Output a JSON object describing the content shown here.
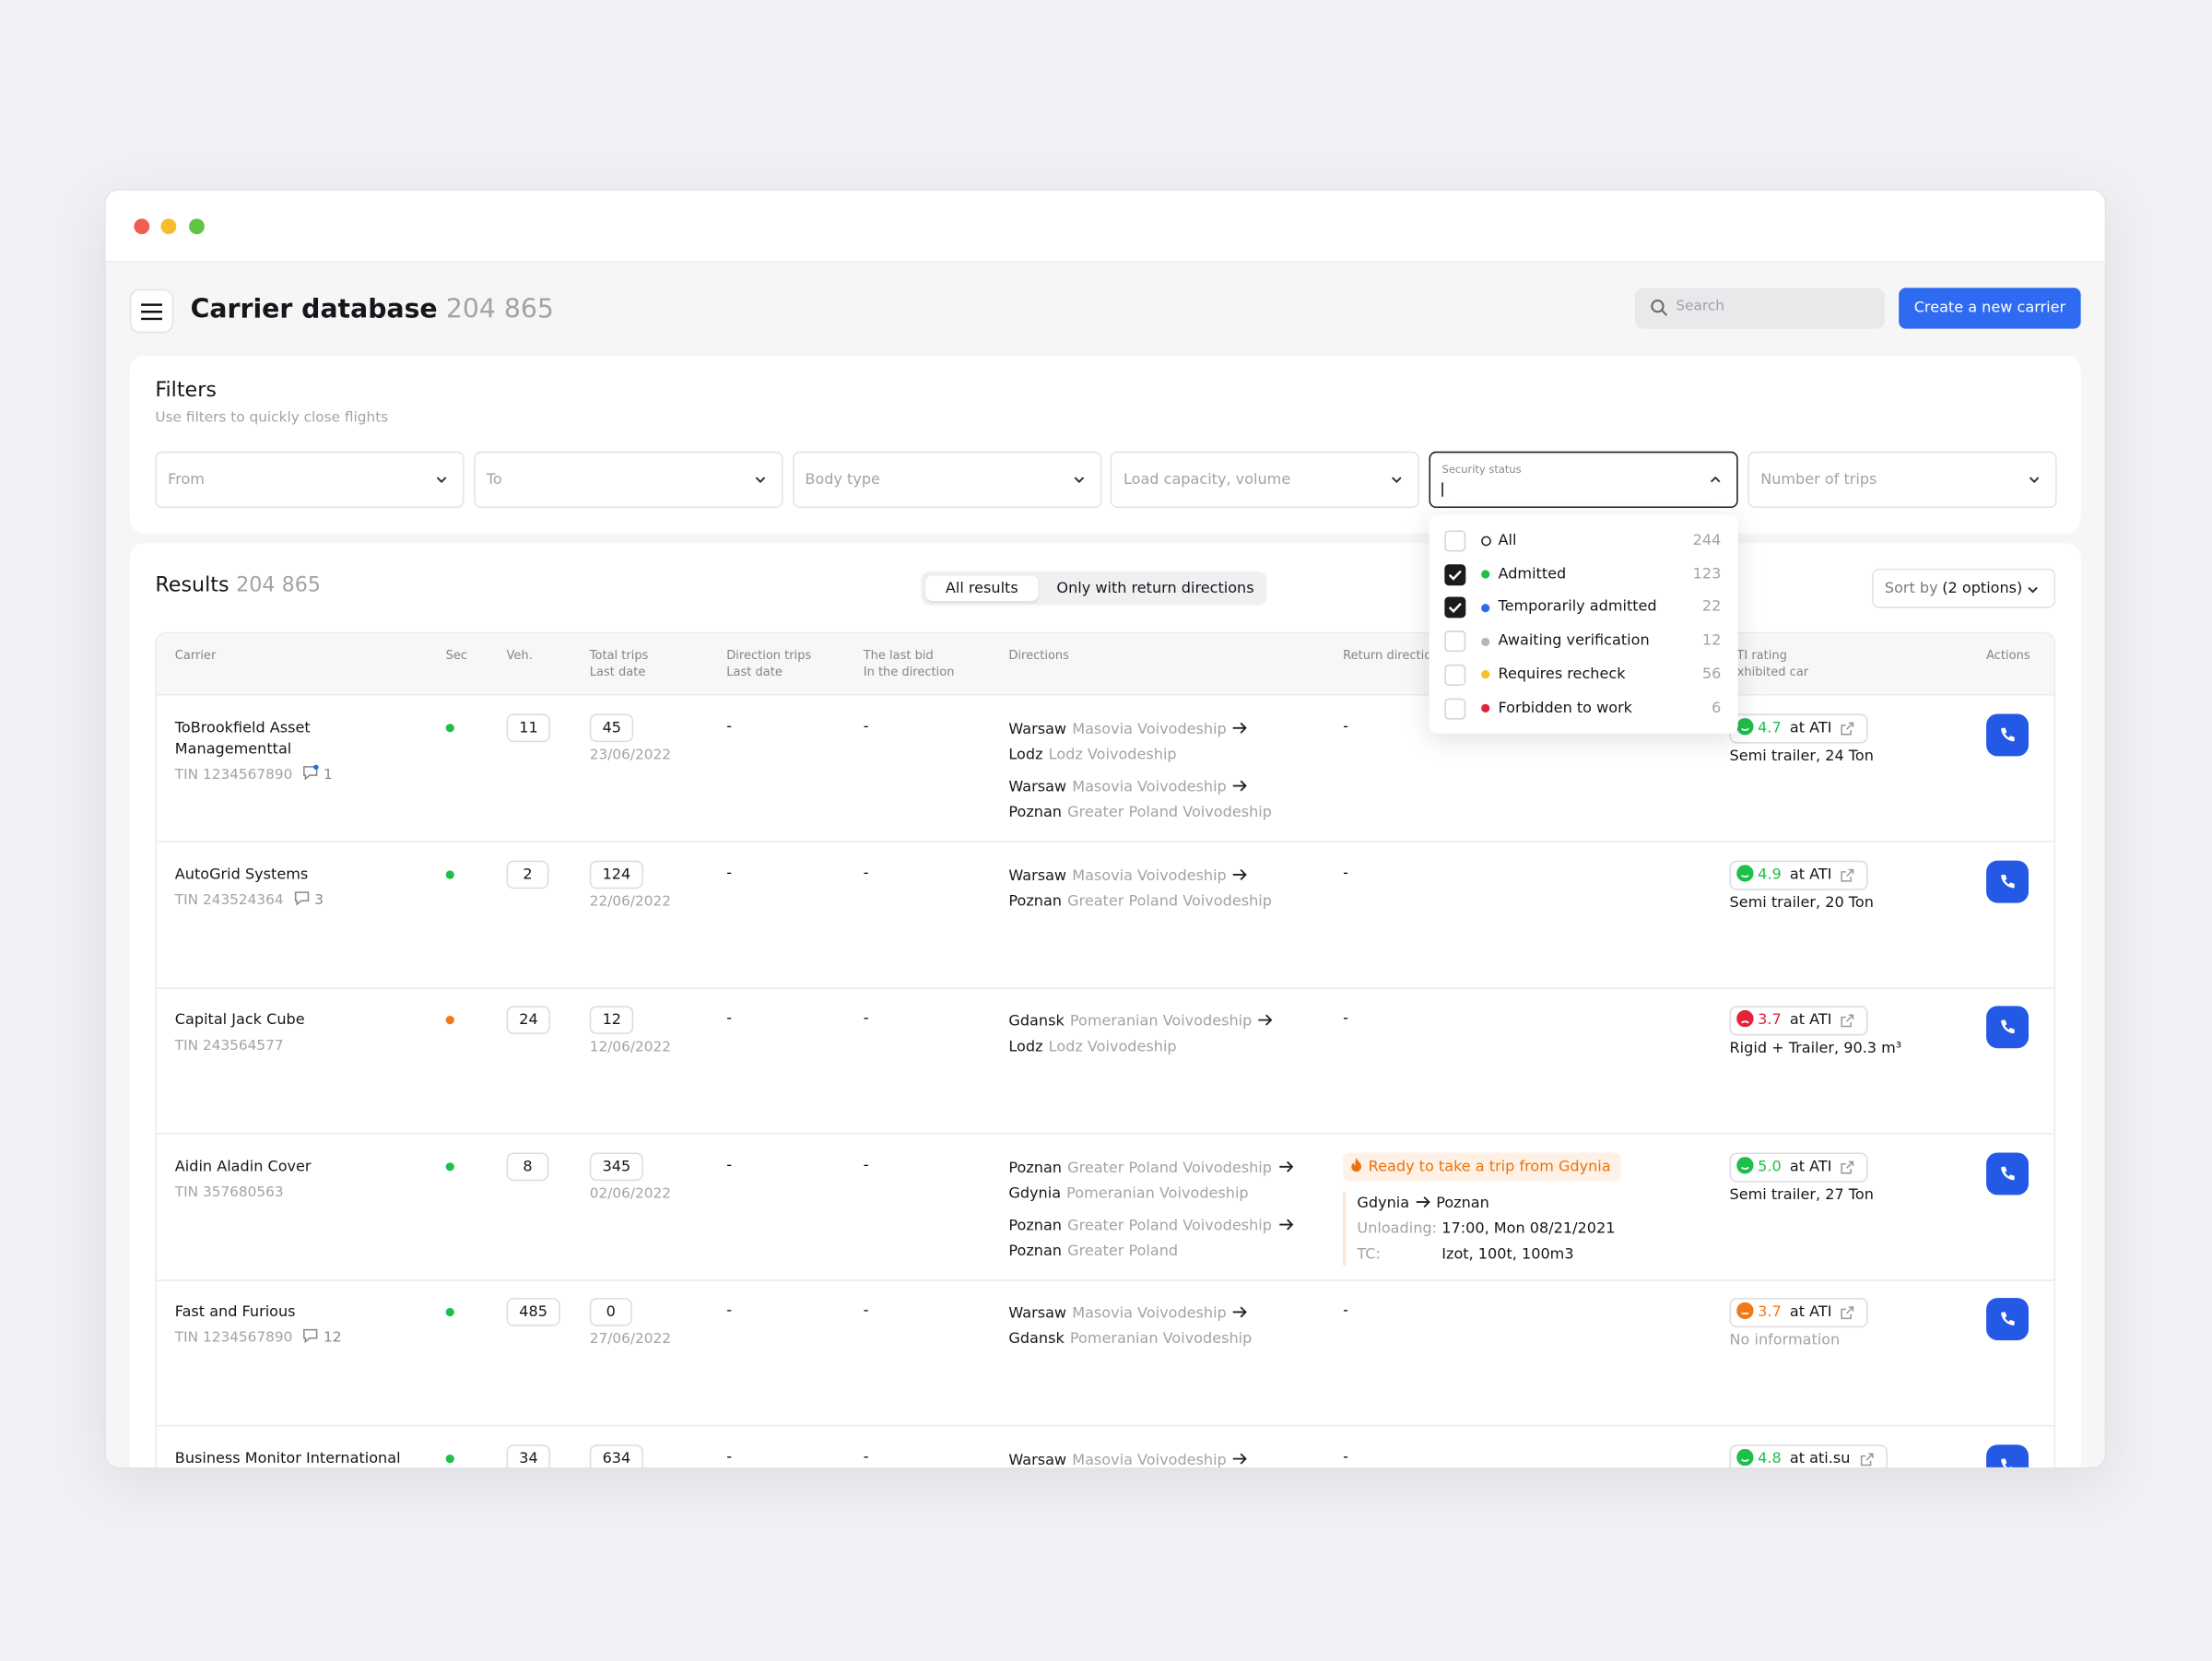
{
  "header": {
    "title": "Carrier database",
    "count": "204 865",
    "search_placeholder": "Search",
    "create_button": "Create a new carrier"
  },
  "filters": {
    "title": "Filters",
    "subtitle": "Use filters to quickly close flights",
    "fields": [
      {
        "label": "From"
      },
      {
        "label": "To"
      },
      {
        "label": "Body type"
      },
      {
        "label": "Load capacity, volume"
      },
      {
        "label": "Security status",
        "open": true
      },
      {
        "label": "Number of trips"
      }
    ],
    "security_options": [
      {
        "label": "All",
        "count": 244,
        "checked": false,
        "color": "hollow"
      },
      {
        "label": "Admitted",
        "count": 123,
        "checked": true,
        "color": "#1fbf4c"
      },
      {
        "label": "Temporarily admitted",
        "count": 22,
        "checked": true,
        "color": "#2f6bf0"
      },
      {
        "label": "Awaiting verification",
        "count": 12,
        "checked": false,
        "color": "#b5b5ba"
      },
      {
        "label": "Requires recheck",
        "count": 56,
        "checked": false,
        "color": "#f2c12e"
      },
      {
        "label": "Forbidden to work",
        "count": 6,
        "checked": false,
        "color": "#e0243a"
      }
    ]
  },
  "results": {
    "title": "Results",
    "count": "204 865",
    "tabs": [
      "All results",
      "Only with return directions"
    ],
    "sort_label": "Sort by",
    "sort_value": "(2 options)",
    "columns": [
      {
        "lines": [
          "Carrier"
        ]
      },
      {
        "lines": [
          "Sec"
        ]
      },
      {
        "lines": [
          "Veh."
        ]
      },
      {
        "lines": [
          "Total trips",
          "Last date"
        ]
      },
      {
        "lines": [
          "Direction trips",
          "Last date"
        ]
      },
      {
        "lines": [
          "The last bid",
          "In the direction"
        ]
      },
      {
        "lines": [
          "Directions"
        ]
      },
      {
        "lines": [
          "Return directions"
        ]
      },
      {
        "lines": [
          "ATI rating",
          "Exhibited car"
        ]
      },
      {
        "lines": [
          "Actions"
        ]
      }
    ],
    "rows": [
      {
        "name": "ToBrookfield Asset Managementtal",
        "tin": "TIN 1234567890",
        "comments": 1,
        "comment_unread": true,
        "sec_color": "#1fbf4c",
        "vehicles": 11,
        "total_trips": 45,
        "last_date": "23/06/2022",
        "direction_trips": "-",
        "last_bid": "-",
        "directions": [
          {
            "from": "Warsaw",
            "from_region": "Masovia Voivodeship",
            "to": "Lodz",
            "to_region": "Lodz Voivodeship"
          },
          {
            "from": "Warsaw",
            "from_region": "Masovia Voivodeship",
            "to": "Poznan",
            "to_region": "Greater Poland Voivodeship"
          }
        ],
        "return": "-",
        "rating": {
          "value": "4.7",
          "color": "#1fbf4c",
          "mood": "happy",
          "source": "at ATI"
        },
        "car": "Semi trailer, 24 Ton"
      },
      {
        "name": "AutoGrid Systems",
        "tin": "TIN 243524364",
        "comments": 3,
        "sec_color": "#1fbf4c",
        "vehicles": 2,
        "total_trips": 124,
        "last_date": "22/06/2022",
        "direction_trips": "-",
        "last_bid": "-",
        "directions": [
          {
            "from": "Warsaw",
            "from_region": "Masovia Voivodeship",
            "to": "Poznan",
            "to_region": "Greater Poland Voivodeship"
          }
        ],
        "return": "-",
        "rating": {
          "value": "4.9",
          "color": "#1fbf4c",
          "mood": "happy",
          "source": "at ATI"
        },
        "car": "Semi trailer, 20 Ton"
      },
      {
        "name": "Capital Jack Cube",
        "tin": "TIN 243564577",
        "sec_color": "#f07a1a",
        "vehicles": 24,
        "total_trips": 12,
        "last_date": "12/06/2022",
        "direction_trips": "-",
        "last_bid": "-",
        "directions": [
          {
            "from": "Gdansk",
            "from_region": "Pomeranian Voivodeship",
            "to": "Lodz",
            "to_region": "Lodz Voivodeship"
          }
        ],
        "return": "-",
        "rating": {
          "value": "3.7",
          "color": "#e0243a",
          "mood": "sad",
          "source": "at ATI"
        },
        "car": "Rigid + Trailer, 90.3 m³"
      },
      {
        "name": "Aidin Aladin Cover",
        "tin": "TIN 357680563",
        "sec_color": "#1fbf4c",
        "vehicles": 8,
        "total_trips": 345,
        "last_date": "02/06/2022",
        "direction_trips": "-",
        "last_bid": "-",
        "directions": [
          {
            "from": "Poznan",
            "from_region": "Greater Poland Voivodeship",
            "to": "Gdynia",
            "to_region": "Pomeranian Voivodeship"
          },
          {
            "from": "Poznan",
            "from_region": "Greater Poland Voivodeship",
            "to": "Poznan",
            "to_region": "Greater Poland"
          }
        ],
        "return": {
          "badge": "Ready to take a trip from Gdynia",
          "from": "Gdynia",
          "to": "Poznan",
          "unloading_label": "Unloading:",
          "unloading": "17:00, Mon 08/21/2021",
          "tc_label": "TC:",
          "tc": "Izot, 100t, 100m3"
        },
        "rating": {
          "value": "5.0",
          "color": "#1fbf4c",
          "mood": "happy",
          "source": "at ATI"
        },
        "car": "Semi trailer, 27 Ton"
      },
      {
        "name": "Fast and Furious",
        "tin": "TIN 1234567890",
        "comments": 12,
        "sec_color": "#1fbf4c",
        "vehicles": 485,
        "total_trips": 0,
        "last_date": "27/06/2022",
        "direction_trips": "-",
        "last_bid": "-",
        "directions": [
          {
            "from": "Warsaw",
            "from_region": "Masovia Voivodeship",
            "to": "Gdansk",
            "to_region": "Pomeranian Voivodeship"
          }
        ],
        "return": "-",
        "rating": {
          "value": "3.7",
          "color": "#f07a1a",
          "mood": "neutral",
          "source": "at ATI"
        },
        "car": "No information",
        "car_muted": true
      },
      {
        "name": "Business Monitor International",
        "sec_color": "#1fbf4c",
        "vehicles": 34,
        "total_trips": 634,
        "direction_trips": "-",
        "last_bid": "-",
        "directions": [
          {
            "from": "Warsaw",
            "from_region": "Masovia Voivodeship"
          }
        ],
        "return": "-",
        "rating": {
          "value": "4.8",
          "color": "#1fbf4c",
          "mood": "happy",
          "source": "at ati.su"
        }
      }
    ]
  }
}
